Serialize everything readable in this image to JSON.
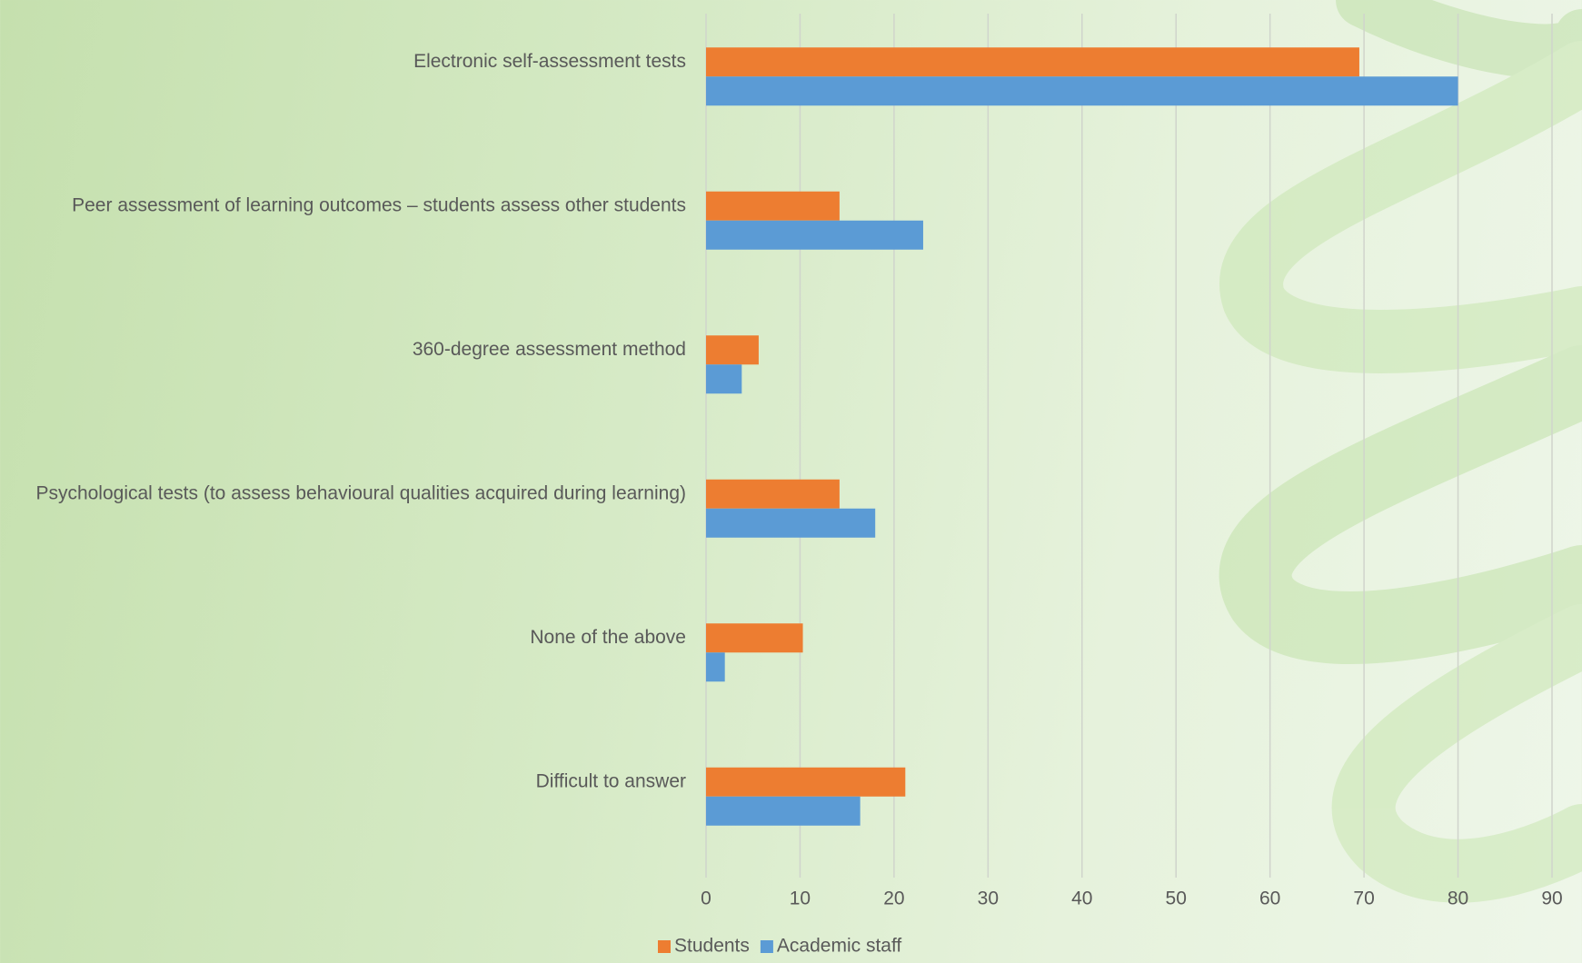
{
  "chart_data": {
    "type": "bar",
    "orientation": "horizontal",
    "categories": [
      "Electronic self-assessment tests",
      "Peer assessment of learning outcomes – students assess other students",
      "360-degree assessment method",
      "Psychological tests (to assess behavioural qualities acquired during learning)",
      "None of the above",
      "Difficult to answer"
    ],
    "series": [
      {
        "name": "Students",
        "color": "#ed7d31",
        "values": [
          69.5,
          14.2,
          5.6,
          14.2,
          10.3,
          21.2
        ]
      },
      {
        "name": "Academic staff",
        "color": "#5b9bd5",
        "values": [
          80.0,
          23.1,
          3.8,
          18.0,
          2.0,
          16.4
        ]
      }
    ],
    "xlim": [
      0,
      90
    ],
    "xticks": [
      0,
      10,
      20,
      30,
      40,
      50,
      60,
      70,
      80,
      90
    ],
    "grid": true,
    "legend": "bottom"
  }
}
